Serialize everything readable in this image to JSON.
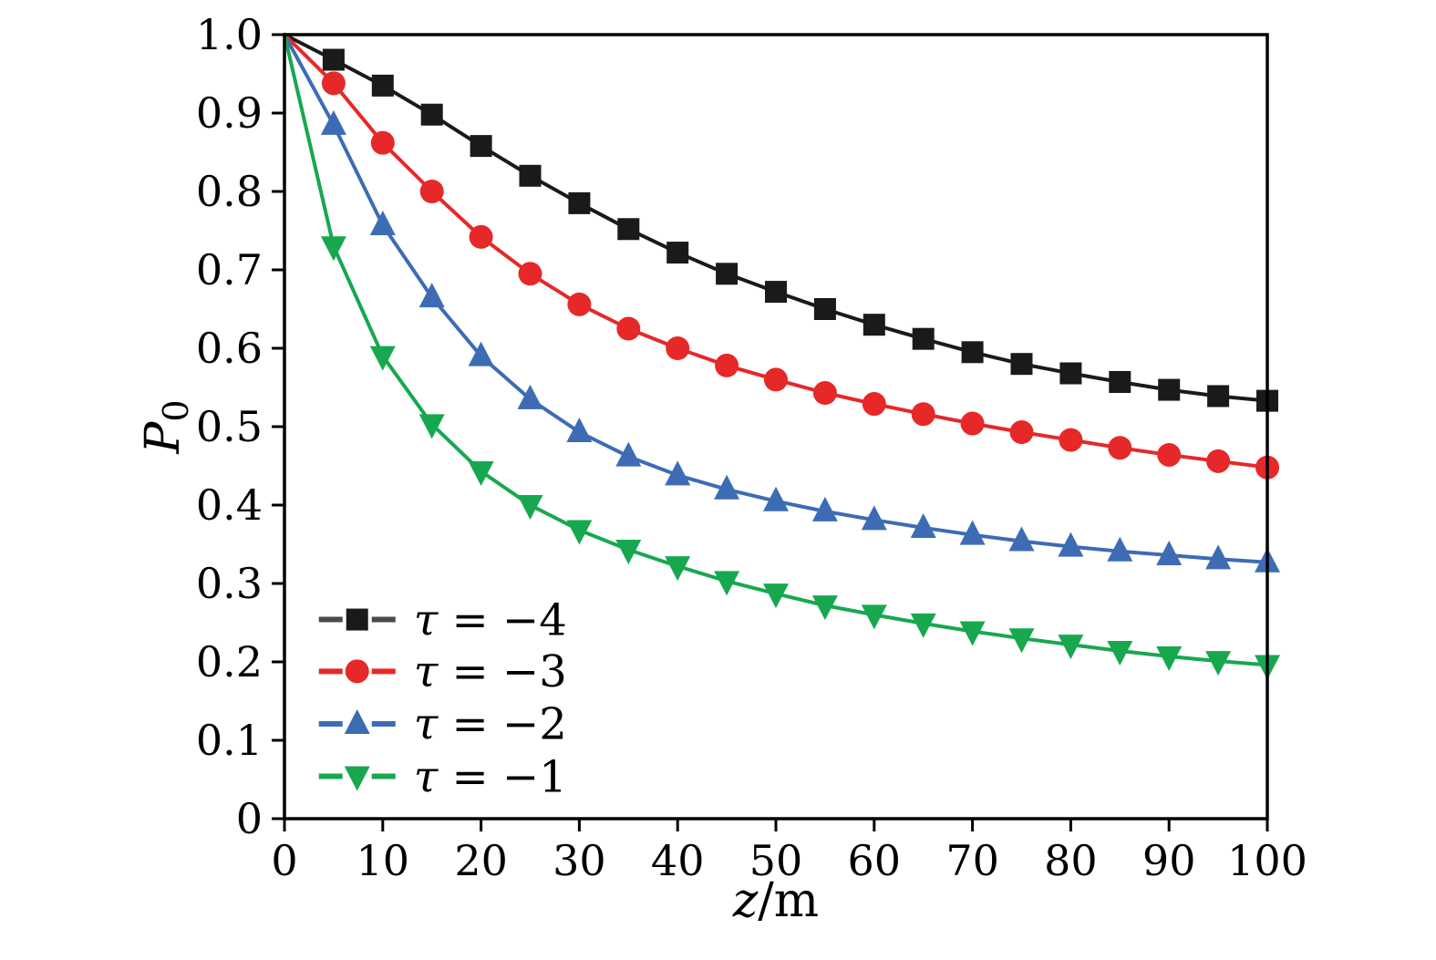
{
  "figure": {
    "background": "#ffffff",
    "axis_color": "#000000"
  },
  "chart_data": {
    "type": "line",
    "title": "",
    "xlabel": "z/m",
    "ylabel_base": "P",
    "ylabel_subscript": "0",
    "xlim": [
      0,
      100
    ],
    "ylim": [
      0,
      1.0
    ],
    "x_ticks": [
      0,
      10,
      20,
      30,
      40,
      50,
      60,
      70,
      80,
      90,
      100
    ],
    "y_ticks": [
      0,
      0.1,
      0.2,
      0.3,
      0.4,
      0.5,
      0.6,
      0.7,
      0.8,
      0.9,
      1.0
    ],
    "grid": false,
    "legend_position": "lower-left",
    "x": [
      0,
      5,
      10,
      15,
      20,
      25,
      30,
      35,
      40,
      45,
      50,
      55,
      60,
      65,
      70,
      75,
      80,
      85,
      90,
      95,
      100
    ],
    "series": [
      {
        "name": "tau-minus-4",
        "label": "τ = −4",
        "color": "#1a1a1a",
        "legend_line_color": "#4a4a4a",
        "marker": "square",
        "values": [
          1.0,
          0.968,
          0.935,
          0.898,
          0.858,
          0.82,
          0.785,
          0.752,
          0.722,
          0.695,
          0.672,
          0.65,
          0.63,
          0.612,
          0.595,
          0.58,
          0.568,
          0.557,
          0.547,
          0.539,
          0.533
        ]
      },
      {
        "name": "tau-minus-3",
        "label": "τ = −3",
        "color": "#e62829",
        "legend_line_color": "#e62829",
        "marker": "circle",
        "values": [
          1.0,
          0.938,
          0.862,
          0.8,
          0.742,
          0.695,
          0.656,
          0.625,
          0.6,
          0.578,
          0.56,
          0.543,
          0.529,
          0.516,
          0.504,
          0.493,
          0.483,
          0.473,
          0.464,
          0.456,
          0.448
        ]
      },
      {
        "name": "tau-minus-2",
        "label": "τ = −2",
        "color": "#3d6cb5",
        "legend_line_color": "#3d6cb5",
        "marker": "triangle-up",
        "values": [
          1.0,
          0.885,
          0.757,
          0.665,
          0.59,
          0.535,
          0.493,
          0.462,
          0.438,
          0.42,
          0.405,
          0.392,
          0.381,
          0.371,
          0.362,
          0.354,
          0.347,
          0.341,
          0.336,
          0.331,
          0.327
        ]
      },
      {
        "name": "tau-minus-1",
        "label": "τ = −1",
        "color": "#17a84f",
        "legend_line_color": "#17a84f",
        "marker": "triangle-down",
        "values": [
          1.0,
          0.73,
          0.59,
          0.503,
          0.443,
          0.4,
          0.368,
          0.343,
          0.322,
          0.303,
          0.287,
          0.272,
          0.26,
          0.249,
          0.239,
          0.23,
          0.222,
          0.214,
          0.207,
          0.201,
          0.196
        ]
      }
    ]
  }
}
